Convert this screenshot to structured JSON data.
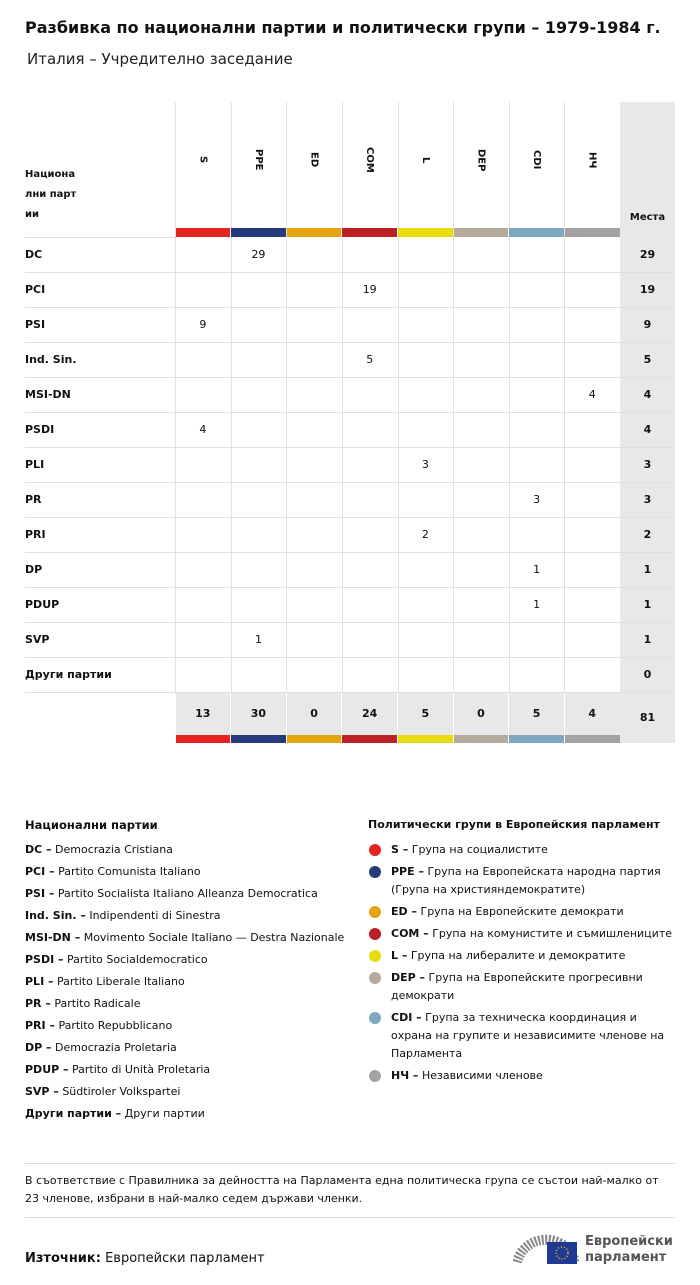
{
  "header": {
    "title": "Разбивка по национални партии и политически групи – 1979-1984 г.",
    "subtitle": "Италия – Учредително заседание"
  },
  "table": {
    "corner": "Национални партии",
    "seats_header": "Места",
    "groups": [
      {
        "code": "S",
        "color": "#e52421"
      },
      {
        "code": "PPE",
        "color": "#263a7c"
      },
      {
        "code": "ED",
        "color": "#e3a50b"
      },
      {
        "code": "COM",
        "color": "#bc1f26"
      },
      {
        "code": "L",
        "color": "#e8dc0d"
      },
      {
        "code": "DEP",
        "color": "#b5aa9c"
      },
      {
        "code": "CDI",
        "color": "#7fa7c0"
      },
      {
        "code": "НЧ",
        "color": "#a3a3a3"
      }
    ],
    "rows": [
      {
        "party": "DC",
        "cells": [
          null,
          29,
          null,
          null,
          null,
          null,
          null,
          null
        ],
        "seats": 29
      },
      {
        "party": "PCI",
        "cells": [
          null,
          null,
          null,
          19,
          null,
          null,
          null,
          null
        ],
        "seats": 19
      },
      {
        "party": "PSI",
        "cells": [
          9,
          null,
          null,
          null,
          null,
          null,
          null,
          null
        ],
        "seats": 9
      },
      {
        "party": "Ind. Sin.",
        "cells": [
          null,
          null,
          null,
          5,
          null,
          null,
          null,
          null
        ],
        "seats": 5
      },
      {
        "party": "MSI-DN",
        "cells": [
          null,
          null,
          null,
          null,
          null,
          null,
          null,
          4
        ],
        "seats": 4
      },
      {
        "party": "PSDI",
        "cells": [
          4,
          null,
          null,
          null,
          null,
          null,
          null,
          null
        ],
        "seats": 4
      },
      {
        "party": "PLI",
        "cells": [
          null,
          null,
          null,
          null,
          3,
          null,
          null,
          null
        ],
        "seats": 3
      },
      {
        "party": "PR",
        "cells": [
          null,
          null,
          null,
          null,
          null,
          null,
          3,
          null
        ],
        "seats": 3
      },
      {
        "party": "PRI",
        "cells": [
          null,
          null,
          null,
          null,
          2,
          null,
          null,
          null
        ],
        "seats": 2
      },
      {
        "party": "DP",
        "cells": [
          null,
          null,
          null,
          null,
          null,
          null,
          1,
          null
        ],
        "seats": 1
      },
      {
        "party": "PDUP",
        "cells": [
          null,
          null,
          null,
          null,
          null,
          null,
          1,
          null
        ],
        "seats": 1
      },
      {
        "party": "SVP",
        "cells": [
          null,
          1,
          null,
          null,
          null,
          null,
          null,
          null
        ],
        "seats": 1
      },
      {
        "party": "Други партии",
        "cells": [
          null,
          null,
          null,
          null,
          null,
          null,
          null,
          null
        ],
        "seats": 0
      }
    ],
    "totals": [
      13,
      30,
      0,
      24,
      5,
      0,
      5,
      4
    ],
    "total_seats": 81
  },
  "legend_parties": {
    "title": "Национални партии",
    "items": [
      {
        "code": "DC –",
        "name": "Democrazia Cristiana"
      },
      {
        "code": "PCI –",
        "name": "Partito Comunista Italiano"
      },
      {
        "code": "PSI –",
        "name": "Partito Socialista Italiano Alleanza Democratica"
      },
      {
        "code": "Ind. Sin. –",
        "name": "Indipendenti di Sinestra"
      },
      {
        "code": "MSI-DN –",
        "name": "Movimento Sociale Italiano — Destra Nazionale"
      },
      {
        "code": "PSDI –",
        "name": "Partito Socialdemocratico"
      },
      {
        "code": "PLI –",
        "name": "Partito Liberale Italiano"
      },
      {
        "code": "PR –",
        "name": "Partito Radicale"
      },
      {
        "code": "PRI –",
        "name": "Partito Repubblicano"
      },
      {
        "code": "DP –",
        "name": "Democrazia Proletaria"
      },
      {
        "code": "PDUP –",
        "name": "Partito di Unità Proletaria"
      },
      {
        "code": "SVP –",
        "name": "Südtiroler Volkspartei"
      },
      {
        "code": "Други партии –",
        "name": "Други партии"
      }
    ]
  },
  "legend_groups": {
    "title": "Политически групи в Европейския парламент",
    "items": [
      {
        "code": "S –",
        "name": "Група на социалистите"
      },
      {
        "code": "PPE –",
        "name": "Група на Европейската народна партия (Група на християндемократите)"
      },
      {
        "code": "ED –",
        "name": "Група на Европейските демократи"
      },
      {
        "code": "COM –",
        "name": "Група на комунистите и съмишлениците"
      },
      {
        "code": "L –",
        "name": "Група на либералите и демократите"
      },
      {
        "code": "DEP –",
        "name": "Група на Европейските прогресивни демократи"
      },
      {
        "code": "CDI –",
        "name": "Група за техническа координация и охрана на групите и независимите членове на Парламента"
      },
      {
        "code": "НЧ –",
        "name": "Независими членове"
      }
    ]
  },
  "footnote": "В съответствие с Правилника за дейността на Парламента една политическа група се състои най-малко от 23 членове, избрани в най-малко седем държави членки.",
  "source": {
    "label": "Източник:",
    "text": "Европейски парламент"
  },
  "logo": {
    "line1": "Европейски",
    "line2": "парламент"
  }
}
